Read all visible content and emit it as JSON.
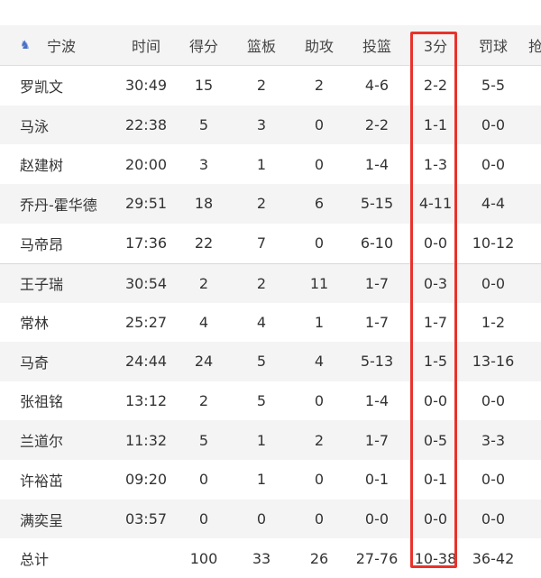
{
  "team": "宁波",
  "headers": [
    "时间",
    "得分",
    "篮板",
    "助攻",
    "投篮",
    "3分",
    "罚球",
    "抢"
  ],
  "rows": [
    [
      "罗凯文",
      "30:49",
      "15",
      "2",
      "2",
      "4-6",
      "2-2",
      "5-5"
    ],
    [
      "马泳",
      "22:38",
      "5",
      "3",
      "0",
      "2-2",
      "1-1",
      "0-0"
    ],
    [
      "赵建树",
      "20:00",
      "3",
      "1",
      "0",
      "1-4",
      "1-3",
      "0-0"
    ],
    [
      "乔丹-霍华德",
      "29:51",
      "18",
      "2",
      "6",
      "5-15",
      "4-11",
      "4-4"
    ],
    [
      "马帝昂",
      "17:36",
      "22",
      "7",
      "0",
      "6-10",
      "0-0",
      "10-12"
    ],
    [
      "王子瑞",
      "30:54",
      "2",
      "2",
      "11",
      "1-7",
      "0-3",
      "0-0"
    ],
    [
      "常林",
      "25:27",
      "4",
      "4",
      "1",
      "1-7",
      "1-7",
      "1-2"
    ],
    [
      "马奇",
      "24:44",
      "24",
      "5",
      "4",
      "5-13",
      "1-5",
      "13-16"
    ],
    [
      "张祖铭",
      "13:12",
      "2",
      "5",
      "0",
      "1-4",
      "0-0",
      "0-0"
    ],
    [
      "兰道尔",
      "11:32",
      "5",
      "1",
      "2",
      "1-7",
      "0-5",
      "3-3"
    ],
    [
      "许裕茁",
      "09:20",
      "0",
      "1",
      "0",
      "0-1",
      "0-1",
      "0-0"
    ],
    [
      "满奕呈",
      "03:57",
      "0",
      "0",
      "0",
      "0-0",
      "0-0",
      "0-0"
    ],
    [
      "总计",
      "",
      "100",
      "33",
      "26",
      "27-76",
      "10-38",
      "36-42"
    ]
  ],
  "highlight_color": "#e8322b"
}
